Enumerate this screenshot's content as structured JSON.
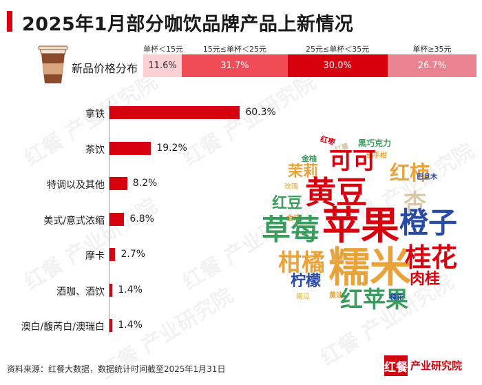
{
  "title": "2025年1月部分咖饮品牌产品上新情况",
  "price_distribution": {
    "label": "新品价格分布",
    "segments": [
      {
        "tier": "单杯＜15元",
        "value": "11.6%",
        "share": 11.6,
        "color": "#fbd0d3",
        "text_color": "#333333"
      },
      {
        "tier": "15元≤单杯＜25元",
        "value": "31.7%",
        "share": 31.7,
        "color": "#ef4c57",
        "text_color": "#ffffff"
      },
      {
        "tier": "25元≤单杯＜35元",
        "value": "30.0%",
        "share": 30.0,
        "color": "#d7000f",
        "text_color": "#ffffff"
      },
      {
        "tier": "单杯≥35元",
        "value": "26.7%",
        "share": 26.7,
        "color": "#e8848f",
        "text_color": "#ffffff"
      }
    ]
  },
  "chart_data": {
    "type": "bar",
    "orientation": "horizontal",
    "categories": [
      "拿铁",
      "茶饮",
      "特调以及其他",
      "美式/意式浓缩",
      "摩卡",
      "酒咖、酒饮",
      "澳白/馥芮白/澳瑞白"
    ],
    "values": [
      60.3,
      19.2,
      8.2,
      6.8,
      2.7,
      1.4,
      1.4
    ],
    "value_labels": [
      "60.3%",
      "19.2%",
      "8.2%",
      "6.8%",
      "2.7%",
      "1.4%",
      "1.4%"
    ],
    "xlim": [
      0,
      100
    ],
    "color": "#d7000f",
    "grid": false
  },
  "word_cloud": [
    {
      "text": "红枣",
      "color": "#d7000f"
    },
    {
      "text": "黑巧克力",
      "color": "#3a9d5d"
    },
    {
      "text": "金柚",
      "color": "#3a9d5d"
    },
    {
      "text": "红薯",
      "color": "#d9c8a8"
    },
    {
      "text": "佛手柑",
      "color": "#e8a33a"
    },
    {
      "text": "茉莉",
      "color": "#e8a33a"
    },
    {
      "text": "可可",
      "color": "#d7000f"
    },
    {
      "text": "红柿",
      "color": "#e8a33a"
    },
    {
      "text": "玫瑰",
      "color": "#e8c878"
    },
    {
      "text": "巴旦木",
      "color": "#2a4aa8"
    },
    {
      "text": "黄豆",
      "color": "#d7000f"
    },
    {
      "text": "红豆",
      "color": "#3a9d5d"
    },
    {
      "text": "杏",
      "color": "#d9c8a8"
    },
    {
      "text": "金桔",
      "color": "#e8a33a"
    },
    {
      "text": "草莓",
      "color": "#3a9d5d"
    },
    {
      "text": "苹果",
      "color": "#d7000f"
    },
    {
      "text": "橙子",
      "color": "#2a4aa8"
    },
    {
      "text": "柑橘",
      "color": "#e8a33a"
    },
    {
      "text": "糯米",
      "color": "#e8a33a"
    },
    {
      "text": "桂花",
      "color": "#d7000f"
    },
    {
      "text": "柠檬",
      "color": "#2a4aa8"
    },
    {
      "text": "肉桂",
      "color": "#d7000f"
    },
    {
      "text": "南瓜",
      "color": "#e8c878"
    },
    {
      "text": "黄油",
      "color": "#e8a33a"
    },
    {
      "text": "红苹果",
      "color": "#3a9d5d"
    },
    {
      "text": "槐花",
      "color": "#2a4aa8"
    }
  ],
  "source": "资料来源：红餐大数据，数据统计时间截至2025年1月31日",
  "logo": {
    "mark": "红餐",
    "text": "产业研究院"
  },
  "watermark": "红餐 产业研究院",
  "icons": {
    "cup": "coffee-cup-icon"
  }
}
